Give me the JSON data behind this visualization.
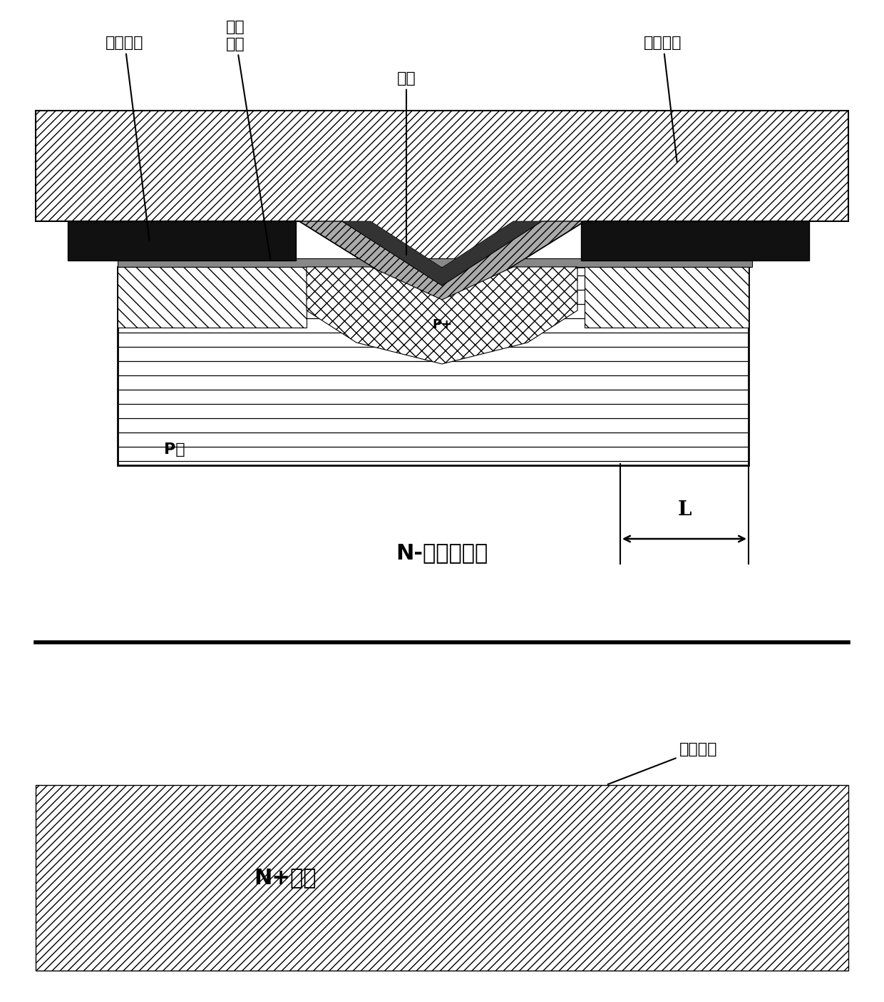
{
  "labels": {
    "gate_material": "栅极材料",
    "gate_dielectric": "栅介\n质层",
    "metal": "金属",
    "interlayer_dielectric": "层间介质",
    "p_well": "P阱",
    "p_plus": "P+",
    "n_minus_epi": "N-碳化硅外延",
    "n_plus_sub": "N+衬底",
    "back_metal": "背面金属",
    "L_label": "L",
    "N_plus": "N+"
  }
}
